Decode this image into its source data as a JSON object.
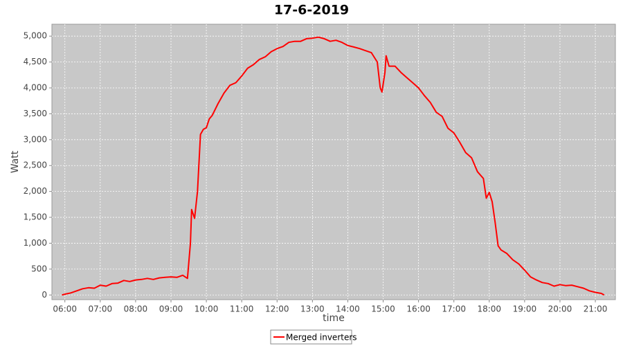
{
  "chart_data": {
    "type": "line",
    "title": "17-6-2019",
    "x_label": "time",
    "y_label": "Watt",
    "x": [
      "05:55",
      "06:00",
      "06:10",
      "06:20",
      "06:30",
      "06:40",
      "06:50",
      "07:00",
      "07:10",
      "07:20",
      "07:30",
      "07:40",
      "07:50",
      "08:00",
      "08:10",
      "08:20",
      "08:30",
      "08:40",
      "08:50",
      "09:00",
      "09:10",
      "09:20",
      "09:28",
      "09:33",
      "09:35",
      "09:40",
      "09:45",
      "09:50",
      "09:55",
      "10:00",
      "10:05",
      "10:10",
      "10:20",
      "10:30",
      "10:40",
      "10:50",
      "11:00",
      "11:10",
      "11:20",
      "11:30",
      "11:40",
      "11:50",
      "12:00",
      "12:10",
      "12:20",
      "12:30",
      "12:40",
      "12:50",
      "13:00",
      "13:10",
      "13:20",
      "13:30",
      "13:40",
      "13:50",
      "14:00",
      "14:10",
      "14:20",
      "14:30",
      "14:40",
      "14:50",
      "14:55",
      "14:58",
      "15:03",
      "15:05",
      "15:10",
      "15:20",
      "15:30",
      "15:40",
      "15:50",
      "16:00",
      "16:10",
      "16:20",
      "16:30",
      "16:40",
      "16:50",
      "17:00",
      "17:10",
      "17:20",
      "17:30",
      "17:40",
      "17:50",
      "17:55",
      "18:00",
      "18:05",
      "18:10",
      "18:15",
      "18:20",
      "18:30",
      "18:40",
      "18:50",
      "19:00",
      "19:10",
      "19:20",
      "19:30",
      "19:40",
      "19:50",
      "20:00",
      "20:10",
      "20:20",
      "20:30",
      "20:40",
      "20:50",
      "21:00",
      "21:10",
      "21:15"
    ],
    "series": [
      {
        "name": "Merged inverters",
        "color": "#ff0000",
        "values": [
          0,
          15,
          40,
          80,
          120,
          140,
          130,
          190,
          170,
          220,
          230,
          280,
          260,
          290,
          300,
          320,
          300,
          330,
          340,
          350,
          340,
          380,
          320,
          1000,
          1650,
          1480,
          2000,
          3100,
          3200,
          3230,
          3400,
          3470,
          3700,
          3900,
          4050,
          4100,
          4230,
          4380,
          4450,
          4550,
          4600,
          4700,
          4760,
          4800,
          4880,
          4900,
          4900,
          4950,
          4960,
          4980,
          4950,
          4900,
          4920,
          4880,
          4820,
          4790,
          4760,
          4720,
          4680,
          4500,
          4000,
          3920,
          4300,
          4620,
          4420,
          4420,
          4300,
          4200,
          4100,
          4000,
          3850,
          3720,
          3530,
          3450,
          3220,
          3130,
          2950,
          2750,
          2650,
          2380,
          2250,
          1870,
          1980,
          1800,
          1400,
          950,
          870,
          800,
          680,
          600,
          480,
          350,
          290,
          240,
          220,
          170,
          200,
          180,
          190,
          160,
          130,
          80,
          50,
          30,
          0
        ]
      }
    ],
    "xlim": [
      "05:38",
      "21:34"
    ],
    "xticks": [
      "06:00",
      "07:00",
      "08:00",
      "09:00",
      "10:00",
      "11:00",
      "12:00",
      "13:00",
      "14:00",
      "15:00",
      "16:00",
      "17:00",
      "18:00",
      "19:00",
      "20:00",
      "21:00"
    ],
    "ylim": [
      -90,
      5230
    ],
    "yticks": [
      0,
      {
        "value": 500,
        "label": "500"
      },
      {
        "value": 1000,
        "label": "1,000"
      },
      {
        "value": 1500,
        "label": "1,500"
      },
      {
        "value": 2000,
        "label": "2,000"
      },
      {
        "value": 2500,
        "label": "2,500"
      },
      {
        "value": 3000,
        "label": "3,000"
      },
      {
        "value": 3500,
        "label": "3,500"
      },
      {
        "value": 4000,
        "label": "4,000"
      },
      {
        "value": 4500,
        "label": "4,500"
      },
      {
        "value": 5000,
        "label": "5,000"
      }
    ],
    "grid": true
  }
}
